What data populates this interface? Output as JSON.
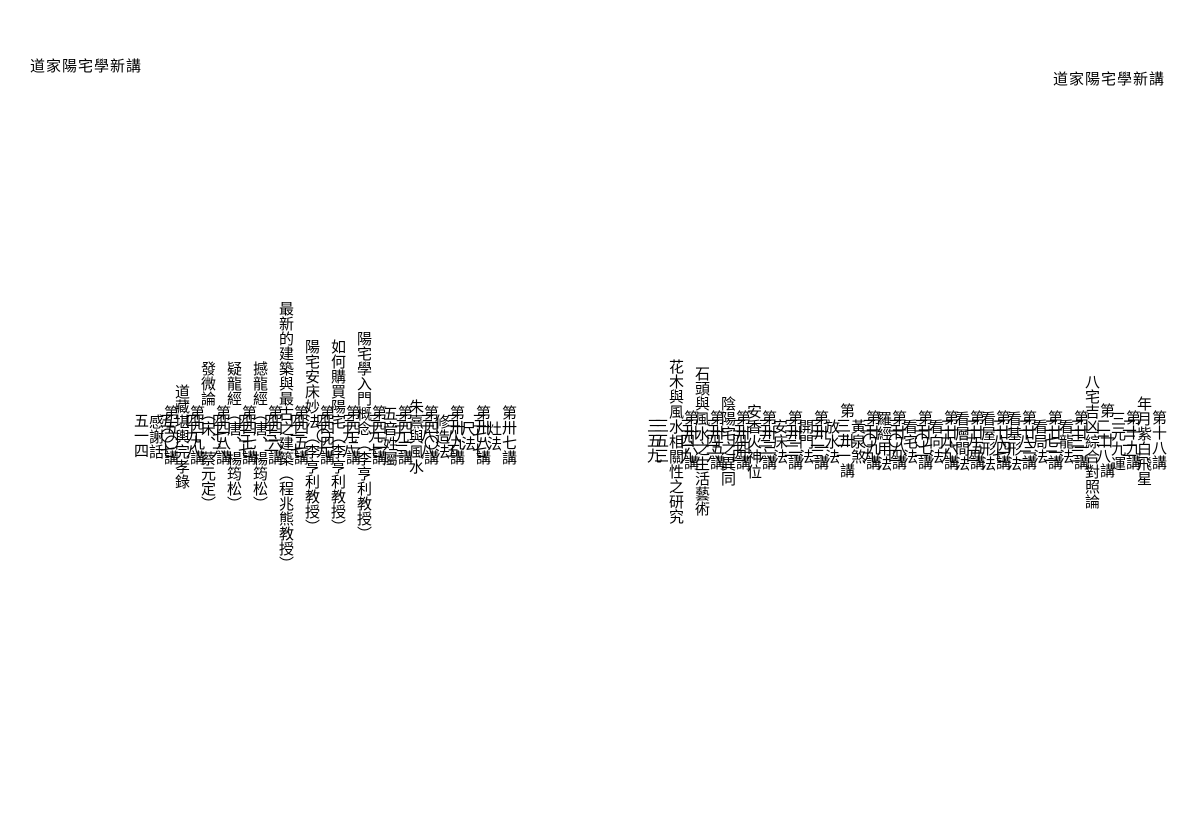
{
  "header_left": "道家陽宅學新講",
  "header_right": "道家陽宅學新講",
  "right_page_entries": [
    {
      "label": "第十八講",
      "title": "年月紫白飛星",
      "page": "二二一"
    },
    {
      "label": "第十九講",
      "title": "三元九運",
      "page": "二二八"
    },
    {
      "label": "第　廿　講",
      "title": "八宅吉凶綜合對照論",
      "page": "二三三"
    },
    {
      "label": "第廿一講",
      "title": "看龍法",
      "page": "二七二"
    },
    {
      "label": "第廿二講",
      "title": "看局法",
      "page": "二八二"
    },
    {
      "label": "第廿三講",
      "title": "看基形法",
      "page": "二八七"
    },
    {
      "label": "第廿四講",
      "title": "看屋形法",
      "page": "二九四"
    },
    {
      "label": "第廿五講",
      "title": "看層間法",
      "page": "二九九"
    },
    {
      "label": "第廿六講",
      "title": "看向法",
      "page": "三〇一"
    },
    {
      "label": "第廿七講",
      "title": "看宅法",
      "page": "三〇四"
    },
    {
      "label": "第廿八講",
      "title": "羅經用法",
      "page": "三〇九"
    },
    {
      "label": "第廿九講",
      "title": "黃泉煞",
      "page": "三二一"
    },
    {
      "label": "第　卅　講",
      "title": "放水法",
      "page": "三二三"
    },
    {
      "label": "第卅一講",
      "title": "開門法",
      "page": "三三一"
    },
    {
      "label": "第卅二講",
      "title": "安床法",
      "page": "三三六"
    },
    {
      "label": "第卅三講",
      "title": "安香火神位",
      "page": "三四四"
    },
    {
      "label": "第卅四講",
      "title": "陰陽宅之異同",
      "page": "三四六"
    },
    {
      "label": "第卅五講",
      "title": "石頭與風水之生活藝術",
      "page": "三四九"
    },
    {
      "label": "第卅六講",
      "title": "花木與風水相關性之研究",
      "page": "三五三"
    },
    {
      "label": "",
      "title": "",
      "page": "三五九",
      "continuation": true
    }
  ],
  "left_page_entries": [
    {
      "label": "第卅七講",
      "title": "灶法",
      "page": "三七七"
    },
    {
      "label": "第卅八講",
      "title": "尺法",
      "page": "三八五"
    },
    {
      "label": "第卅九講",
      "title": "修造法",
      "page": "三八八"
    },
    {
      "label": "第四〇講",
      "title": "朱熹與風水",
      "page": "三九三"
    },
    {
      "label": "第四一講",
      "title": "五音姓屬",
      "page": "三九七"
    },
    {
      "label": "第四二講",
      "title": "陽宅學入門概念（李亨利教授）",
      "page": "三九八"
    },
    {
      "label": "第四三講",
      "title": "如何購買陽宅（李亨利教授）",
      "page": "四〇九"
    },
    {
      "label": "第四四講",
      "title": "陽宅安床妙法（李亨利教授）",
      "page": "四一七"
    },
    {
      "label": "第四五講",
      "title": "最新的建築與最古之建築（程兆熊教授）",
      "page": "四三一"
    },
    {
      "label": "第四六講",
      "title": "撼龍經（唐、楊筠松）",
      "page": "四三七"
    },
    {
      "label": "第四七講",
      "title": "疑龍經（唐、楊筠松）",
      "page": "四七六"
    },
    {
      "label": "第四八講",
      "title": "發微論（宋、蔡元定）",
      "page": "四九八"
    },
    {
      "label": "第四九講",
      "title": "道藏堪輿完孝錄",
      "page": "五〇七"
    },
    {
      "label": "第五〇講",
      "title": "感謝話",
      "page": "五一四"
    }
  ]
}
